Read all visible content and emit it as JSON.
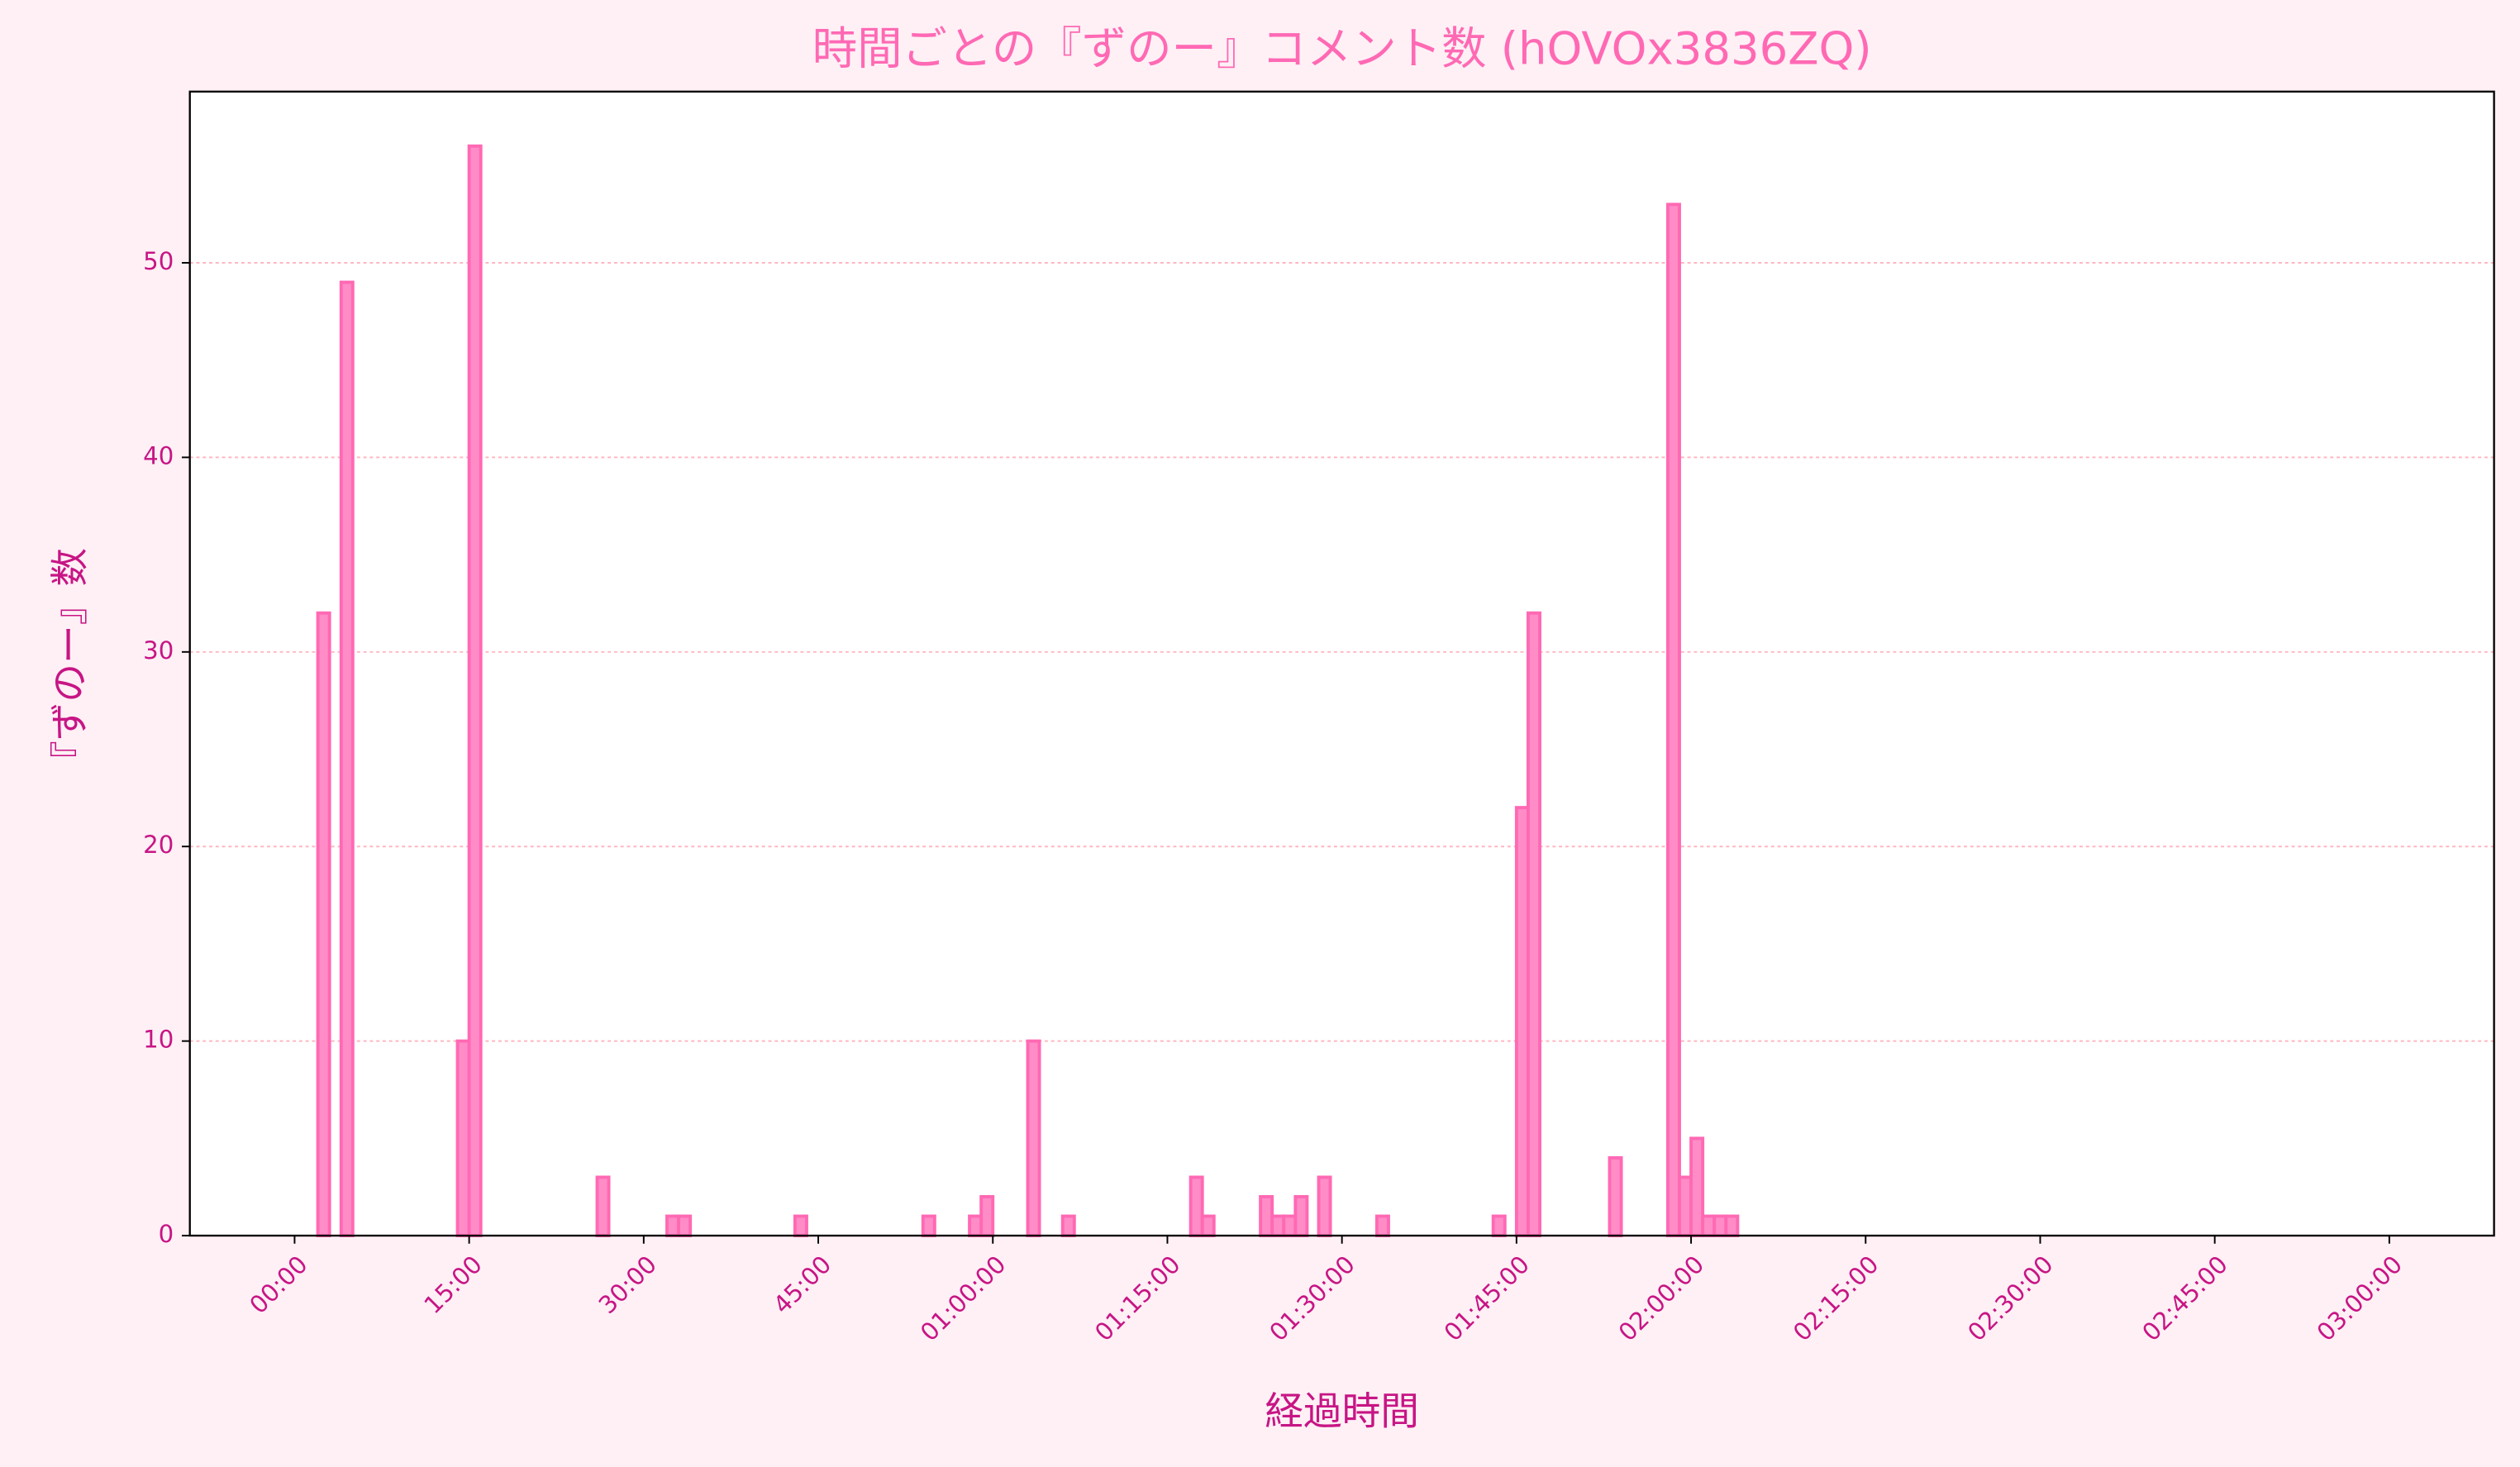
{
  "chart_data": {
    "type": "histogram",
    "title": "時間ごとの『ずのー』コメント数 (hOVOx3836ZQ)",
    "x_label": "経過時間",
    "y_label": "『ずのー』数",
    "bins": [
      0,
      1,
      2,
      3,
      4,
      5,
      6,
      7,
      8,
      9,
      10,
      11,
      12,
      13,
      14,
      15,
      16,
      17,
      18,
      19,
      20,
      21,
      22,
      23,
      24,
      25,
      26,
      27,
      28,
      29,
      30,
      31,
      32,
      33,
      34,
      35,
      36,
      37,
      38,
      39,
      40,
      41,
      42,
      43,
      44,
      45,
      46,
      47,
      48,
      49,
      50,
      51,
      52,
      53,
      54,
      55,
      56,
      57,
      58,
      59,
      60,
      61,
      62,
      63,
      64,
      65,
      66,
      67,
      68,
      69,
      70,
      71,
      72,
      73,
      74,
      75,
      76,
      77,
      78,
      79,
      80,
      81,
      82,
      83,
      84,
      85,
      86,
      87,
      88,
      89,
      90,
      91,
      92,
      93,
      94,
      95,
      96,
      97,
      98,
      99,
      100,
      101,
      102,
      103,
      104,
      105,
      106,
      107,
      108,
      109,
      110,
      111,
      112,
      113,
      114,
      115,
      116,
      117,
      118,
      119,
      120,
      121,
      122,
      123,
      124,
      125,
      126,
      127,
      128,
      129,
      130,
      131,
      132,
      133,
      134,
      135,
      136,
      137,
      138,
      139,
      140,
      141,
      142,
      143,
      144,
      145,
      146,
      147,
      148,
      149,
      150,
      151,
      152,
      153,
      154,
      155,
      156,
      157,
      158,
      159,
      160,
      161,
      162,
      163,
      164,
      165,
      166,
      167,
      168,
      169,
      170,
      171,
      172,
      173,
      174,
      175,
      176,
      177,
      178,
      179,
      180
    ],
    "values": [
      0,
      0,
      32,
      0,
      49,
      0,
      0,
      0,
      0,
      0,
      0,
      0,
      0,
      0,
      10,
      56,
      0,
      0,
      0,
      0,
      0,
      0,
      0,
      0,
      0,
      0,
      3,
      0,
      0,
      0,
      0,
      0,
      1,
      1,
      0,
      0,
      0,
      0,
      0,
      0,
      0,
      0,
      0,
      1,
      0,
      0,
      0,
      0,
      0,
      0,
      0,
      0,
      0,
      0,
      1,
      0,
      0,
      0,
      1,
      2,
      0,
      0,
      0,
      10,
      0,
      0,
      1,
      0,
      0,
      0,
      0,
      0,
      0,
      0,
      0,
      0,
      0,
      3,
      1,
      0,
      0,
      0,
      0,
      2,
      1,
      1,
      2,
      0,
      3,
      0,
      0,
      0,
      0,
      1,
      0,
      0,
      0,
      0,
      0,
      0,
      0,
      0,
      0,
      1,
      0,
      22,
      32,
      0,
      0,
      0,
      0,
      0,
      0,
      4,
      0,
      0,
      0,
      0,
      53,
      3,
      5,
      1,
      1,
      1,
      0,
      0,
      0,
      0,
      0,
      0,
      0,
      0,
      0,
      0,
      0,
      0,
      0,
      0,
      0,
      0,
      0,
      0,
      0,
      0,
      0,
      0,
      0,
      0,
      0,
      0,
      0,
      0,
      0,
      0,
      0,
      0,
      0,
      0,
      0,
      0,
      0,
      0,
      0,
      0,
      0,
      0,
      0,
      0,
      0,
      0,
      0,
      0,
      0,
      0,
      0,
      0,
      0,
      0,
      0,
      0
    ],
    "color": "#ff8cc6",
    "edge_color": "#ff69b4",
    "xlim": [
      -9,
      189
    ],
    "xticks": [
      {
        "value": 0,
        "label": "00:00"
      },
      {
        "value": 15,
        "label": "15:00"
      },
      {
        "value": 30,
        "label": "30:00"
      },
      {
        "value": 45,
        "label": "45:00"
      },
      {
        "value": 60,
        "label": "01:00:00"
      },
      {
        "value": 75,
        "label": "01:15:00"
      },
      {
        "value": 90,
        "label": "01:30:00"
      },
      {
        "value": 105,
        "label": "01:45:00"
      },
      {
        "value": 120,
        "label": "02:00:00"
      },
      {
        "value": 135,
        "label": "02:15:00"
      },
      {
        "value": 150,
        "label": "02:30:00"
      },
      {
        "value": 165,
        "label": "02:45:00"
      },
      {
        "value": 180,
        "label": "03:00:00"
      }
    ],
    "ylim": [
      0,
      58.8
    ],
    "yticks": [
      0,
      10,
      20,
      30,
      40,
      50
    ],
    "grid": true
  }
}
